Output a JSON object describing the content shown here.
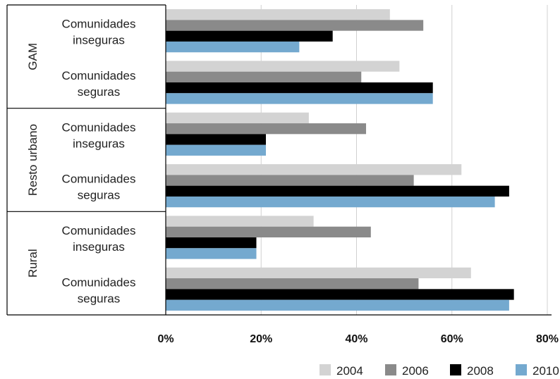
{
  "chart_data": {
    "type": "bar",
    "orientation": "horizontal",
    "groups": [
      {
        "name": "GAM",
        "categories": [
          "Comunidades inseguras",
          "Comunidades seguras"
        ]
      },
      {
        "name": "Resto urbano",
        "categories": [
          "Comunidades inseguras",
          "Comunidades seguras"
        ]
      },
      {
        "name": "Rural",
        "categories": [
          "Comunidades inseguras",
          "Comunidades seguras"
        ]
      }
    ],
    "category_lines": [
      [
        "Comunidades",
        "inseguras"
      ],
      [
        "Comunidades",
        "seguras"
      ]
    ],
    "series": [
      {
        "name": "2004",
        "color": "#d3d3d3",
        "values": [
          47,
          49,
          30,
          62,
          31,
          64
        ]
      },
      {
        "name": "2006",
        "color": "#8a8a8a",
        "values": [
          54,
          41,
          42,
          52,
          43,
          53
        ]
      },
      {
        "name": "2008",
        "color": "#000000",
        "values": [
          35,
          56,
          21,
          72,
          19,
          73
        ]
      },
      {
        "name": "2010",
        "color": "#74a9cf",
        "values": [
          28,
          56,
          21,
          69,
          19,
          72
        ]
      }
    ],
    "xlim": [
      0,
      80
    ],
    "xticks": [
      0,
      20,
      40,
      60,
      80
    ],
    "xtick_labels": [
      "0%",
      "20%",
      "40%",
      "60%",
      "80%"
    ],
    "xlabel": "",
    "ylabel": "",
    "title": "",
    "grid": "vertical",
    "legend_position": "bottom-right"
  }
}
